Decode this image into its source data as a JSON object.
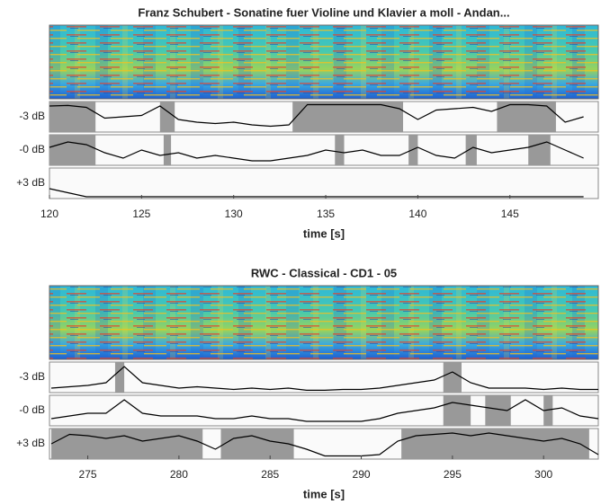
{
  "chart_data": [
    {
      "type": "line",
      "title": "Franz Schubert - Sonatine fuer Violine und Klavier a moll - Andan...",
      "xlabel": "time [s]",
      "xlim": [
        120,
        149.8
      ],
      "xticks": [
        120,
        125,
        130,
        135,
        140,
        145
      ],
      "ylim": [
        0,
        1
      ],
      "color": "#000000",
      "shade_color": "#999999",
      "x": [
        120,
        121,
        122,
        123,
        124,
        125,
        126,
        127,
        128,
        129,
        130,
        131,
        132,
        133,
        134,
        135,
        136,
        137,
        138,
        139,
        140,
        141,
        142,
        143,
        144,
        145,
        146,
        147,
        148,
        149
      ],
      "panels": [
        {
          "label": "-3 dB",
          "values": [
            0.9,
            0.92,
            0.85,
            0.45,
            0.5,
            0.55,
            0.9,
            0.4,
            0.3,
            0.25,
            0.3,
            0.2,
            0.15,
            0.2,
            0.95,
            0.95,
            0.95,
            0.95,
            0.95,
            0.8,
            0.4,
            0.75,
            0.8,
            0.85,
            0.7,
            0.95,
            0.95,
            0.9,
            0.3,
            0.5
          ],
          "shaded": [
            [
              120,
              122.5
            ],
            [
              126,
              126.8
            ],
            [
              133.2,
              139.2
            ],
            [
              144.3,
              147.5
            ]
          ]
        },
        {
          "label": "-0 dB",
          "values": [
            0.6,
            0.8,
            0.7,
            0.4,
            0.2,
            0.5,
            0.3,
            0.4,
            0.2,
            0.3,
            0.2,
            0.1,
            0.1,
            0.2,
            0.3,
            0.5,
            0.4,
            0.5,
            0.3,
            0.3,
            0.6,
            0.3,
            0.2,
            0.6,
            0.4,
            0.5,
            0.6,
            0.8,
            0.5,
            0.2
          ],
          "shaded": [
            [
              120,
              122.5
            ],
            [
              126.2,
              126.6
            ],
            [
              135.5,
              136
            ],
            [
              139.5,
              140
            ],
            [
              142.6,
              143.2
            ],
            [
              146,
              147.2
            ]
          ]
        },
        {
          "label": "+3 dB",
          "values": [
            0.3,
            0.15,
            0,
            0,
            0,
            0,
            0,
            0,
            0,
            0,
            0,
            0,
            0,
            0,
            0,
            0,
            0,
            0,
            0,
            0,
            0,
            0,
            0,
            0,
            0,
            0,
            0,
            0,
            0,
            0
          ],
          "shaded": []
        }
      ]
    },
    {
      "type": "line",
      "title": "RWC - Classical - CD1 - 05",
      "xlabel": "time [s]",
      "xlim": [
        272.9,
        303
      ],
      "xticks": [
        275,
        280,
        285,
        290,
        295,
        300
      ],
      "ylim": [
        0,
        1
      ],
      "color": "#000000",
      "shade_color": "#999999",
      "x": [
        273,
        274,
        275,
        276,
        277,
        278,
        279,
        280,
        281,
        282,
        283,
        284,
        285,
        286,
        287,
        288,
        289,
        290,
        291,
        292,
        293,
        294,
        295,
        296,
        297,
        298,
        299,
        300,
        301,
        302,
        303
      ],
      "panels": [
        {
          "label": "-3 dB",
          "values": [
            0.1,
            0.15,
            0.2,
            0.3,
            0.9,
            0.3,
            0.2,
            0.1,
            0.15,
            0.1,
            0.05,
            0.1,
            0.05,
            0.1,
            0.02,
            0.02,
            0.05,
            0.05,
            0.1,
            0.2,
            0.3,
            0.4,
            0.7,
            0.3,
            0.1,
            0.1,
            0.1,
            0.05,
            0.1,
            0.05,
            0.05
          ],
          "shaded": [
            [
              276.5,
              277
            ],
            [
              294.5,
              295.5
            ]
          ]
        },
        {
          "label": "-0 dB",
          "values": [
            0.2,
            0.3,
            0.4,
            0.4,
            0.9,
            0.4,
            0.3,
            0.3,
            0.3,
            0.2,
            0.2,
            0.3,
            0.2,
            0.2,
            0.1,
            0.1,
            0.1,
            0.1,
            0.2,
            0.4,
            0.5,
            0.6,
            0.8,
            0.7,
            0.6,
            0.5,
            0.9,
            0.5,
            0.6,
            0.3,
            0.2
          ],
          "shaded": [
            [
              294.5,
              296
            ],
            [
              296.8,
              298.2
            ],
            [
              300,
              300.5
            ]
          ]
        },
        {
          "label": "+3 dB",
          "values": [
            0.5,
            0.85,
            0.8,
            0.7,
            0.8,
            0.6,
            0.7,
            0.8,
            0.6,
            0.3,
            0.7,
            0.8,
            0.6,
            0.5,
            0.3,
            0.05,
            0.05,
            0.05,
            0.1,
            0.6,
            0.8,
            0.85,
            0.9,
            0.8,
            0.9,
            0.8,
            0.7,
            0.6,
            0.7,
            0.5,
            0.1
          ],
          "shaded": [
            [
              273,
              281.3
            ],
            [
              282.3,
              286.3
            ],
            [
              292.2,
              302.5
            ]
          ]
        }
      ]
    }
  ]
}
